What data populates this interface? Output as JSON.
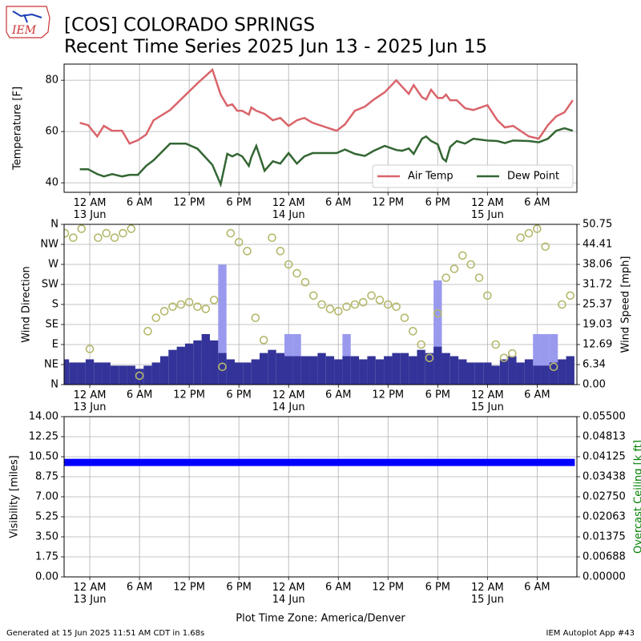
{
  "header": {
    "title": "[COS] COLORADO SPRINGS",
    "subtitle": "Recent Time Series 2025 Jun 13 - 2025 Jun 15",
    "logo": "IEM"
  },
  "footer": {
    "left": "Generated at 15 Jun 2025 11:51 AM CDT in 1.68s",
    "right": "IEM Autoplot App #43"
  },
  "chart_data": [
    {
      "type": "line",
      "ylabel": "Temperature [F]",
      "grid": true,
      "legend": "lower right",
      "xlim": [
        -3.1,
        58.8
      ],
      "xticks": [
        {
          "value": 0,
          "label": "12 AM\n13 Jun"
        },
        {
          "value": 6,
          "label": "6 AM"
        },
        {
          "value": 12,
          "label": "12 PM"
        },
        {
          "value": 18,
          "label": "6 PM"
        },
        {
          "value": 24,
          "label": "12 AM\n14 Jun"
        },
        {
          "value": 30,
          "label": "6 AM"
        },
        {
          "value": 36,
          "label": "12 PM"
        },
        {
          "value": 42,
          "label": "6 PM"
        },
        {
          "value": 48,
          "label": "12 AM\n15 Jun"
        },
        {
          "value": 54,
          "label": "6 AM"
        }
      ],
      "ylim": [
        36.3,
        86.3
      ],
      "yticks": [
        40,
        60,
        80
      ],
      "x": [
        -1.2,
        -0.2,
        0.9,
        1.7,
        2.7,
        3.9,
        4.8,
        5.8,
        6.8,
        7.7,
        9.7,
        11.6,
        13.0,
        14.8,
        15.8,
        16.6,
        17.2,
        17.8,
        18.4,
        19.2,
        19.5,
        20.1,
        21.1,
        22.1,
        23.0,
        24.0,
        25.0,
        25.9,
        26.9,
        29.8,
        30.8,
        32.0,
        33.2,
        34.3,
        35.6,
        37.0,
        37.7,
        38.5,
        39.1,
        40.1,
        40.6,
        41.2,
        42.0,
        42.6,
        43.0,
        43.5,
        44.3,
        45.3,
        46.3,
        48.0,
        49.2,
        50.1,
        51.1,
        53.0,
        54.2,
        55.3,
        56.3,
        57.3,
        58.3
      ],
      "series": [
        {
          "name": "Air Temp",
          "color": "#d9646a",
          "values": [
            63.4,
            62.5,
            58.1,
            62.2,
            60.3,
            60.3,
            55.3,
            56.6,
            58.8,
            64.4,
            68.4,
            74.4,
            78.8,
            84.1,
            74.4,
            70,
            70.6,
            68.1,
            68.1,
            66.6,
            69.4,
            68.1,
            66.9,
            64.4,
            65.3,
            62.2,
            64.4,
            65.3,
            63.4,
            60.3,
            62.8,
            68.1,
            69.7,
            72.5,
            75.3,
            80,
            77.5,
            74.7,
            78.1,
            73.4,
            72.5,
            76.3,
            73.1,
            73.1,
            74.4,
            72.2,
            72.2,
            69.1,
            68.4,
            70.3,
            64.4,
            61.6,
            62.2,
            58.1,
            57.2,
            62.5,
            65.9,
            67.5,
            72.2
          ]
        },
        {
          "name": "Dew Point",
          "color": "#336633",
          "values": [
            45.3,
            45.3,
            43.4,
            42.5,
            43.4,
            42.5,
            43.1,
            43.1,
            46.6,
            48.8,
            55.3,
            55.3,
            53.3,
            47,
            39.4,
            51.3,
            50.3,
            51.3,
            50.3,
            46.6,
            50,
            54.4,
            44.7,
            48.4,
            47.5,
            51.6,
            47.5,
            50.3,
            51.6,
            51.6,
            53,
            51.3,
            50.5,
            52.5,
            54.4,
            52.8,
            52.5,
            53.4,
            51.3,
            57.2,
            58.1,
            56.3,
            55,
            49.5,
            48.4,
            54,
            56.3,
            55.3,
            57.2,
            56.5,
            56.3,
            55.5,
            56.5,
            56.3,
            55.8,
            57.2,
            60.3,
            61.3,
            60.3
          ]
        }
      ]
    },
    {
      "type": "combo",
      "ylabel": "Wind Direction",
      "y2label": "Wind Speed [mph]",
      "grid": true,
      "xlim": [
        -3.1,
        58.8
      ],
      "xticks": [
        {
          "value": 0,
          "label": "12 AM\n13 Jun"
        },
        {
          "value": 6,
          "label": "6 AM"
        },
        {
          "value": 12,
          "label": "12 PM"
        },
        {
          "value": 18,
          "label": "6 PM"
        },
        {
          "value": 24,
          "label": "12 AM\n14 Jun"
        },
        {
          "value": 30,
          "label": "6 AM"
        },
        {
          "value": 36,
          "label": "12 PM"
        },
        {
          "value": 42,
          "label": "6 PM"
        },
        {
          "value": 48,
          "label": "12 AM\n15 Jun"
        },
        {
          "value": 54,
          "label": "6 AM"
        }
      ],
      "ylim": [
        0,
        360
      ],
      "yticks": [
        {
          "value": 0,
          "label": "N"
        },
        {
          "value": 45,
          "label": "NE"
        },
        {
          "value": 90,
          "label": "E"
        },
        {
          "value": 135,
          "label": "SE"
        },
        {
          "value": 180,
          "label": "S"
        },
        {
          "value": 225,
          "label": "SW"
        },
        {
          "value": 270,
          "label": "W"
        },
        {
          "value": 315,
          "label": "NW"
        },
        {
          "value": 360,
          "label": "N"
        }
      ],
      "y2lim": [
        0,
        50.75
      ],
      "y2ticks": [
        {
          "value": 0,
          "label": "0.00"
        },
        6.34,
        12.69,
        19.03,
        25.37,
        31.72,
        38.06,
        44.41,
        50.75
      ],
      "x": [
        -3,
        -2,
        -1,
        0,
        1,
        2,
        3,
        4,
        5,
        6,
        7,
        8,
        9,
        10,
        11,
        12,
        13,
        14,
        15,
        16,
        17,
        18,
        19,
        20,
        21,
        22,
        23,
        24,
        25,
        26,
        27,
        28,
        29,
        30,
        31,
        32,
        33,
        34,
        35,
        36,
        37,
        38,
        39,
        40,
        41,
        42,
        43,
        44,
        45,
        46,
        47,
        48,
        49,
        50,
        51,
        52,
        53,
        54,
        55,
        56,
        57,
        58
      ],
      "series": [
        {
          "kind": "bar",
          "axis": "y2",
          "color": "#9999ee",
          "values": [
            null,
            null,
            null,
            null,
            null,
            null,
            null,
            null,
            null,
            null,
            null,
            null,
            null,
            null,
            null,
            null,
            null,
            null,
            null,
            38,
            null,
            null,
            null,
            null,
            null,
            null,
            null,
            16,
            16,
            null,
            null,
            null,
            null,
            null,
            16,
            null,
            null,
            null,
            null,
            null,
            null,
            null,
            null,
            null,
            null,
            33,
            null,
            null,
            null,
            null,
            null,
            null,
            null,
            null,
            null,
            null,
            null,
            16,
            16,
            16,
            null,
            null
          ]
        },
        {
          "kind": "bar",
          "axis": "y2",
          "color": "#333399",
          "values": [
            8,
            7,
            7,
            8,
            7,
            7,
            6,
            6,
            6,
            5,
            6,
            7,
            9,
            11,
            12,
            13,
            14,
            16,
            14,
            10,
            8,
            7,
            7,
            8,
            10,
            11,
            10,
            9,
            9,
            9,
            9,
            10,
            9,
            8,
            9,
            9,
            8,
            9,
            8,
            9,
            10,
            10,
            9,
            11,
            10,
            12,
            10,
            9,
            8,
            7,
            7,
            7,
            6,
            8,
            9,
            7,
            8,
            6,
            6,
            7,
            8,
            9
          ]
        },
        {
          "kind": "circle",
          "color": "#b5b86c",
          "values": [
            340,
            330,
            350,
            80,
            330,
            340,
            330,
            340,
            350,
            20,
            120,
            150,
            165,
            175,
            180,
            185,
            175,
            170,
            190,
            40,
            340,
            320,
            300,
            150,
            100,
            330,
            300,
            270,
            250,
            230,
            200,
            180,
            170,
            165,
            175,
            180,
            185,
            200,
            190,
            180,
            175,
            150,
            120,
            90,
            60,
            160,
            240,
            260,
            290,
            270,
            240,
            200,
            90,
            60,
            70,
            330,
            340,
            350,
            310,
            40,
            180,
            200
          ]
        }
      ]
    },
    {
      "type": "combo",
      "ylabel": "Visibility [miles]",
      "y2label": "Overcast Ceiling [k ft]",
      "y2label_color": "#008000",
      "xlabel": "Plot Time Zone: America/Denver",
      "grid": true,
      "xlim": [
        -3.1,
        58.8
      ],
      "xticks": [
        {
          "value": 0,
          "label": "12 AM\n13 Jun"
        },
        {
          "value": 6,
          "label": "6 AM"
        },
        {
          "value": 12,
          "label": "12 PM"
        },
        {
          "value": 18,
          "label": "6 PM"
        },
        {
          "value": 24,
          "label": "12 AM\n14 Jun"
        },
        {
          "value": 30,
          "label": "6 AM"
        },
        {
          "value": 36,
          "label": "12 PM"
        },
        {
          "value": 42,
          "label": "6 PM"
        },
        {
          "value": 48,
          "label": "12 AM\n15 Jun"
        },
        {
          "value": 54,
          "label": "6 AM"
        }
      ],
      "ylim": [
        0,
        14
      ],
      "yticks": [
        {
          "value": 0,
          "label": "0.00"
        },
        1.75,
        {
          "value": 3.5,
          "label": "3.50"
        },
        5.25,
        {
          "value": 7,
          "label": "7.00"
        },
        8.75,
        {
          "value": 10.5,
          "label": "10.50"
        },
        12.25,
        {
          "value": 14,
          "label": "14.00"
        }
      ],
      "y2lim": [
        0,
        0.055
      ],
      "y2ticks": [
        {
          "value": 0,
          "label": "0.00000"
        },
        {
          "value": 0.006875,
          "label": "0.00688"
        },
        {
          "value": 0.01375,
          "label": "0.01375"
        },
        {
          "value": 0.020625,
          "label": "0.02063"
        },
        {
          "value": 0.0275,
          "label": "0.02750"
        },
        {
          "value": 0.034375,
          "label": "0.03438"
        },
        {
          "value": 0.04125,
          "label": "0.04125"
        },
        {
          "value": 0.048125,
          "label": "0.04813"
        },
        {
          "value": 0.055,
          "label": "0.05500"
        }
      ],
      "x": [
        -3,
        -2,
        -1,
        0,
        1,
        2,
        3,
        4,
        5,
        6,
        7,
        8,
        9,
        10,
        11,
        12,
        13,
        14,
        15,
        16,
        17,
        18,
        19,
        20,
        21,
        22,
        23,
        24,
        25,
        26,
        27,
        28,
        29,
        30,
        31,
        32,
        33,
        34,
        35,
        36,
        37,
        38,
        39,
        40,
        41,
        42,
        43,
        44,
        45,
        46,
        47,
        48,
        49,
        50,
        51,
        52,
        53,
        54,
        55,
        56,
        57,
        58
      ],
      "series": [
        {
          "kind": "marker",
          "color": "#0000ff",
          "values": [
            10,
            10,
            10,
            10,
            10,
            10,
            10,
            10,
            10,
            10,
            10,
            10,
            10,
            10,
            10,
            10,
            10,
            10,
            10,
            10,
            10,
            10,
            10,
            10,
            10,
            10,
            10,
            10,
            10,
            10,
            10,
            10,
            10,
            10,
            10,
            10,
            10,
            10,
            10,
            10,
            10,
            10,
            10,
            10,
            10,
            10,
            10,
            10,
            10,
            10,
            10,
            10,
            10,
            10,
            10,
            10,
            10,
            10,
            10,
            10,
            10,
            10
          ]
        }
      ]
    }
  ]
}
